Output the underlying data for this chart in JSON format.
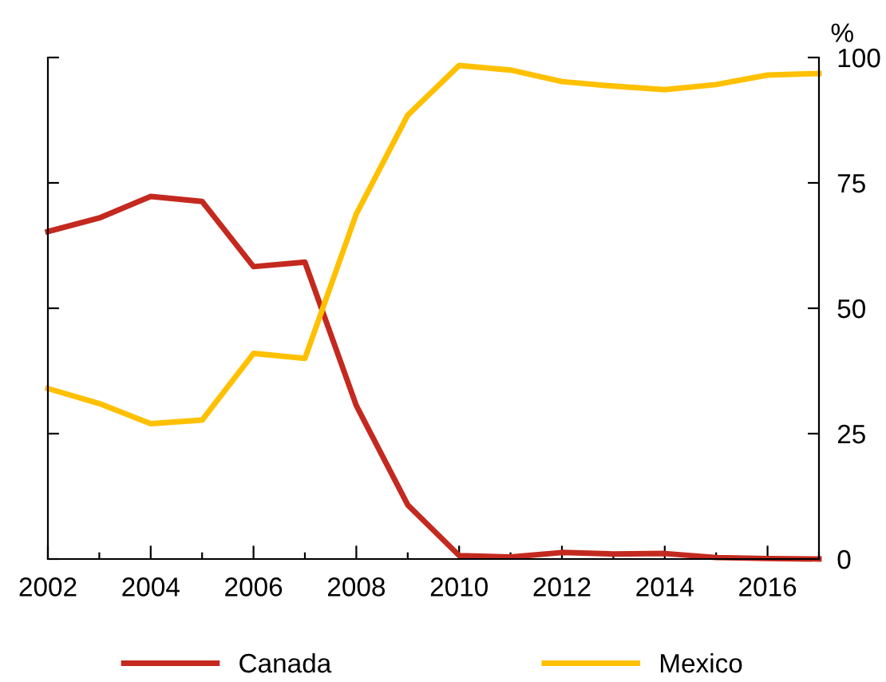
{
  "chart_data": {
    "type": "line",
    "ylabel": "%",
    "x": [
      2002,
      2003,
      2004,
      2005,
      2006,
      2007,
      2008,
      2009,
      2010,
      2011,
      2012,
      2013,
      2014,
      2015,
      2016,
      2017
    ],
    "series": [
      {
        "name": "Canada",
        "color": "#c4291f",
        "values": [
          65.3,
          68,
          72.3,
          71.3,
          58.3,
          59.2,
          30.6,
          10.8,
          0.7,
          0.4,
          1.3,
          1,
          1.1,
          0.3,
          0.1,
          0
        ]
      },
      {
        "name": "Mexico",
        "color": "#ffc000",
        "values": [
          34,
          31,
          27,
          27.7,
          41,
          40,
          68.8,
          88.5,
          98.4,
          97.5,
          95.2,
          94.3,
          93.6,
          94.6,
          96.5,
          96.8
        ]
      }
    ],
    "xlim": [
      2002,
      2017
    ],
    "xticks": [
      2002,
      {
        "value": 2003,
        "label": null
      },
      2004,
      {
        "value": 2005,
        "label": null
      },
      2006,
      {
        "value": 2007,
        "label": null
      },
      2008,
      {
        "value": 2009,
        "label": null
      },
      2010,
      {
        "value": 2011,
        "label": null
      },
      2012,
      {
        "value": 2013,
        "label": null
      },
      2014,
      {
        "value": 2015,
        "label": null
      },
      2016,
      {
        "value": 2017,
        "label": null
      }
    ],
    "ylim": [
      0,
      100
    ],
    "yticks": [
      0,
      25,
      50,
      75,
      100
    ],
    "grid": false,
    "legend": "bottom",
    "marker": "none",
    "line_style": "solid"
  }
}
